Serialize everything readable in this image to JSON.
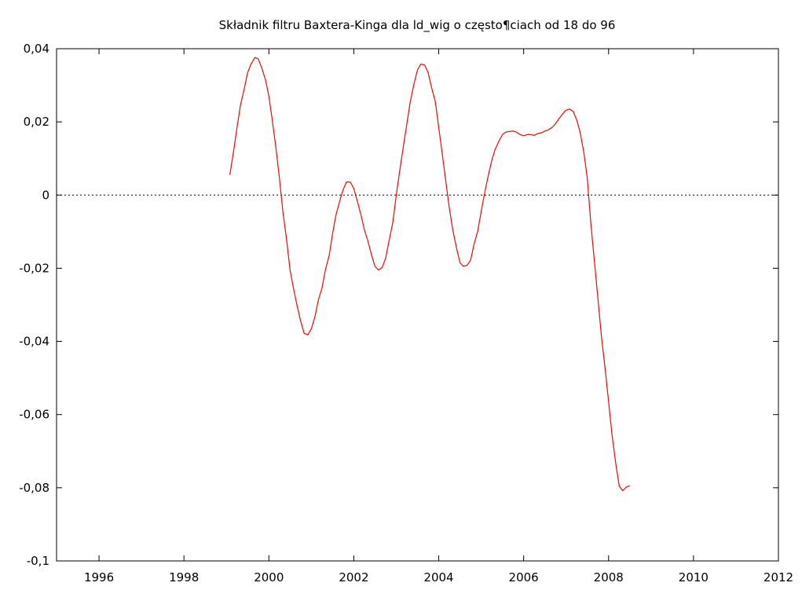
{
  "chart_data": {
    "type": "line",
    "title": "Składnik filtru Baxtera-Kinga dla ld_wig o często¶ciach od 18 do 96",
    "xlabel": "",
    "ylabel": "",
    "xlim": [
      1995,
      2012
    ],
    "ylim": [
      -0.1,
      0.04
    ],
    "x_ticks": [
      1996,
      1998,
      2000,
      2002,
      2004,
      2006,
      2008,
      2010,
      2012
    ],
    "x_tick_labels": [
      "1996",
      "1998",
      "2000",
      "2002",
      "2004",
      "2006",
      "2008",
      "2010",
      "2012"
    ],
    "y_ticks": [
      0.04,
      0.02,
      0,
      -0.02,
      -0.04,
      -0.06,
      -0.08,
      -0.1
    ],
    "y_tick_labels": [
      "0,04",
      "0,02",
      "0",
      "-0,02",
      "-0,04",
      "-0,06",
      "-0,08",
      "-0,1"
    ],
    "zero_line": {
      "value": 0,
      "style": "dotted",
      "color": "#000000"
    },
    "grid": false,
    "series": [
      {
        "color": "#ff0000",
        "x": [
          1999.08,
          1999.17,
          1999.25,
          1999.33,
          1999.42,
          1999.5,
          1999.58,
          1999.67,
          1999.75,
          1999.83,
          1999.92,
          2000.0,
          2000.08,
          2000.17,
          2000.25,
          2000.33,
          2000.42,
          2000.5,
          2000.58,
          2000.67,
          2000.75,
          2000.83,
          2000.92,
          2001.0,
          2001.08,
          2001.17,
          2001.25,
          2001.33,
          2001.42,
          2001.5,
          2001.58,
          2001.67,
          2001.75,
          2001.83,
          2001.92,
          2002.0,
          2002.08,
          2002.17,
          2002.25,
          2002.33,
          2002.42,
          2002.5,
          2002.58,
          2002.67,
          2002.75,
          2002.83,
          2002.92,
          2003.0,
          2003.08,
          2003.17,
          2003.25,
          2003.33,
          2003.42,
          2003.5,
          2003.58,
          2003.67,
          2003.75,
          2003.83,
          2003.92,
          2004.0,
          2004.08,
          2004.17,
          2004.25,
          2004.33,
          2004.42,
          2004.5,
          2004.58,
          2004.67,
          2004.75,
          2004.83,
          2004.92,
          2005.0,
          2005.08,
          2005.17,
          2005.25,
          2005.33,
          2005.42,
          2005.5,
          2005.58,
          2005.67,
          2005.75,
          2005.83,
          2005.92,
          2006.0,
          2006.08,
          2006.17,
          2006.25,
          2006.33,
          2006.42,
          2006.5,
          2006.58,
          2006.67,
          2006.75,
          2006.83,
          2006.92,
          2007.0,
          2007.08,
          2007.17,
          2007.25,
          2007.33,
          2007.42,
          2007.5,
          2007.58,
          2007.67,
          2007.75,
          2007.83,
          2007.92,
          2008.0,
          2008.08,
          2008.17,
          2008.25,
          2008.33,
          2008.42,
          2008.5
        ],
        "y": [
          0.0055,
          0.012,
          0.0185,
          0.0245,
          0.029,
          0.0335,
          0.0358,
          0.0376,
          0.0372,
          0.0348,
          0.0315,
          0.027,
          0.0205,
          0.0125,
          0.0045,
          -0.0045,
          -0.0125,
          -0.0205,
          -0.0255,
          -0.0305,
          -0.0345,
          -0.0378,
          -0.0382,
          -0.0365,
          -0.0335,
          -0.0285,
          -0.0255,
          -0.0205,
          -0.0165,
          -0.0105,
          -0.0055,
          -0.0015,
          0.0015,
          0.0036,
          0.0035,
          0.0018,
          -0.0015,
          -0.0055,
          -0.0095,
          -0.0125,
          -0.0165,
          -0.0195,
          -0.0205,
          -0.0198,
          -0.0172,
          -0.0125,
          -0.0075,
          0.0,
          0.0065,
          0.0135,
          0.0195,
          0.0255,
          0.0305,
          0.0342,
          0.0358,
          0.0355,
          0.0335,
          0.0295,
          0.0255,
          0.0185,
          0.0115,
          0.0035,
          -0.0035,
          -0.0095,
          -0.0145,
          -0.0185,
          -0.0195,
          -0.0192,
          -0.0178,
          -0.0135,
          -0.0098,
          -0.0045,
          0.0005,
          0.0055,
          0.0095,
          0.0125,
          0.0148,
          0.0165,
          0.0172,
          0.0174,
          0.0175,
          0.0172,
          0.0165,
          0.0162,
          0.0165,
          0.0165,
          0.0163,
          0.0168,
          0.017,
          0.0175,
          0.0178,
          0.0185,
          0.0195,
          0.0208,
          0.0222,
          0.0232,
          0.0235,
          0.0228,
          0.0205,
          0.0172,
          0.0115,
          0.0045,
          -0.0075,
          -0.0185,
          -0.0285,
          -0.0385,
          -0.0475,
          -0.0565,
          -0.0655,
          -0.0735,
          -0.0795,
          -0.0808,
          -0.0798,
          -0.0795
        ]
      }
    ]
  }
}
